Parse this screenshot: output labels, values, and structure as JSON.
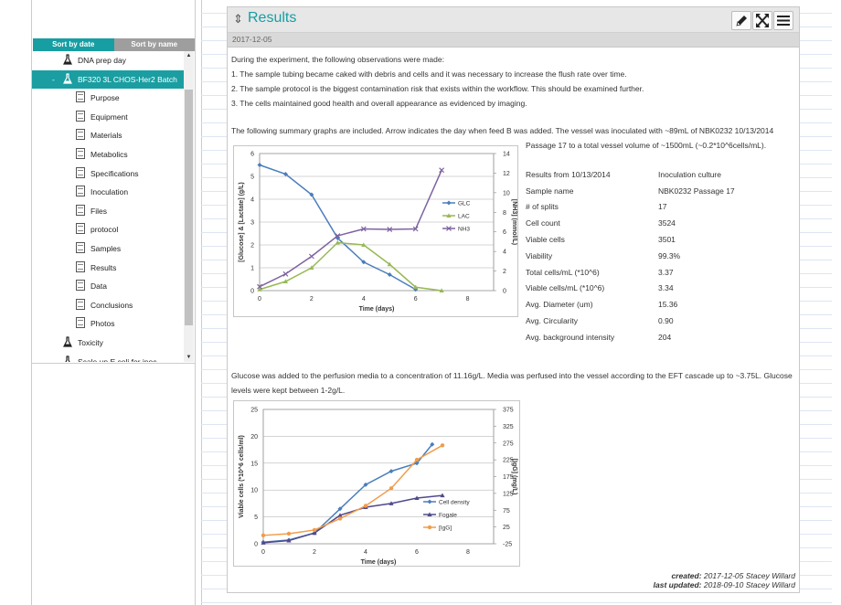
{
  "sidebar": {
    "sort_by_date": "Sort by date",
    "sort_by_name": "Sort by name",
    "items": [
      {
        "label": "DNA prep day",
        "kind": "flask",
        "level": 0
      },
      {
        "label": "BF320 3L CHOS-Her2 Batch",
        "kind": "flask",
        "level": 0,
        "selected": true,
        "prefix": "-"
      },
      {
        "label": "Purpose",
        "kind": "doc",
        "level": 1
      },
      {
        "label": "Equipment",
        "kind": "doc",
        "level": 1
      },
      {
        "label": "Materials",
        "kind": "doc",
        "level": 1
      },
      {
        "label": "Metabolics",
        "kind": "doc",
        "level": 1
      },
      {
        "label": "Specifications",
        "kind": "doc",
        "level": 1
      },
      {
        "label": "Inoculation",
        "kind": "doc",
        "level": 1
      },
      {
        "label": "Files",
        "kind": "doc",
        "level": 1
      },
      {
        "label": "protocol",
        "kind": "doc",
        "level": 1
      },
      {
        "label": "Samples",
        "kind": "doc",
        "level": 1
      },
      {
        "label": "Results",
        "kind": "doc",
        "level": 1
      },
      {
        "label": "Data",
        "kind": "doc",
        "level": 1
      },
      {
        "label": "Conclusions",
        "kind": "doc",
        "level": 1
      },
      {
        "label": "Photos",
        "kind": "doc",
        "level": 1
      },
      {
        "label": "Toxicity",
        "kind": "flask",
        "level": 0
      },
      {
        "label": "Scale up E coli for inoc",
        "kind": "flask",
        "level": 0
      }
    ]
  },
  "panel": {
    "title": "Results",
    "date": "2017-12-05",
    "intro": "During the experiment, the following observations were made:",
    "observations": [
      "1. The sample tubing became caked with debris and cells and it was necessary to increase the flush rate over time.",
      "2. The sample protocol is the biggest contamination risk that exists within the workflow. This should be examined further.",
      "3. The cells maintained good health and overall appearance as evidenced by imaging."
    ],
    "summary_line1": "The following summary graphs are included. Arrow indicates the day when feed B was added.  The vessel was inoculated with ~89mL of NBK0232 10/13/2014",
    "summary_line2": "Passage 17 to a total vessel volume of ~1500mL (~0.2*10^6cells/mL).",
    "table": [
      [
        "Results from 10/13/2014",
        "Inoculation culture"
      ],
      [
        "Sample name",
        "NBK0232 Passage 17"
      ],
      [
        "# of splits",
        "17"
      ],
      [
        "Cell count",
        "3524"
      ],
      [
        "Viable cells",
        "3501"
      ],
      [
        "Viability",
        "99.3%"
      ],
      [
        "Total cells/mL (*10^6)",
        "3.37"
      ],
      [
        "Viable cells/mL (*10^6)",
        "3.34"
      ],
      [
        "Avg. Diameter (um)",
        "15.36"
      ],
      [
        "Avg. Circularity",
        "0.90"
      ],
      [
        "Avg. background intensity",
        "204"
      ]
    ],
    "glucose_line1": "Glucose was added to the perfusion media to a concentration of 11.16g/L. Media was perfused into the vessel according to the EFT cascade up to ~3.75L. Glucose",
    "glucose_line2": "levels were kept between 1-2g/L.",
    "created_label": "created:",
    "created_value": "2017-12-05 Stacey Willard",
    "updated_label": "last updated:",
    "updated_value": "2018-09-10 Stacey Willard"
  },
  "colors": {
    "accent": "#179ea3",
    "blue": "#4a7ebb",
    "green": "#98b954",
    "purple": "#7e62a1",
    "orange": "#f19c4b",
    "navy": "#4f4a8c"
  },
  "chart_data": [
    {
      "type": "line",
      "xlabel": "Time (days)",
      "ylabel": "[Glucose] & [Lactate] (g/L)",
      "y2label": "[NH3] (mmol/L)",
      "xlim": [
        0,
        9
      ],
      "xticks": [
        0,
        2,
        4,
        6,
        8
      ],
      "ylim": [
        0,
        6
      ],
      "yticks": [
        0,
        1,
        2,
        3,
        4,
        5,
        6
      ],
      "y2lim": [
        0,
        14
      ],
      "y2ticks": [
        0,
        2,
        4,
        6,
        8,
        10,
        12,
        14
      ],
      "series": [
        {
          "name": "GLC",
          "axis": "left",
          "color": "#4a7ebb",
          "marker": "diamond",
          "x": [
            0,
            1,
            2,
            3,
            4,
            5,
            6
          ],
          "values": [
            5.5,
            5.1,
            4.2,
            2.3,
            1.25,
            0.7,
            0.05
          ]
        },
        {
          "name": "LAC",
          "axis": "left",
          "color": "#98b954",
          "marker": "triangle",
          "x": [
            0,
            1,
            2,
            3,
            4,
            5,
            6,
            7
          ],
          "values": [
            0.05,
            0.4,
            1.0,
            2.1,
            2.0,
            1.15,
            0.15,
            0.0
          ]
        },
        {
          "name": "NH3",
          "axis": "right",
          "color": "#7e62a1",
          "marker": "x",
          "x": [
            0,
            1,
            2,
            3,
            4,
            5,
            6,
            7
          ],
          "values": [
            0.4,
            1.7,
            3.5,
            5.6,
            6.3,
            6.25,
            6.3,
            12.3
          ]
        }
      ]
    },
    {
      "type": "line",
      "xlabel": "Time (days)",
      "ylabel": "Viable cells (*10^6 cells/ml)",
      "y2label": "[IgG] (mg/L)",
      "xlim": [
        0,
        9
      ],
      "xticks": [
        0,
        2,
        4,
        6,
        8
      ],
      "ylim": [
        0,
        25
      ],
      "yticks": [
        0,
        5,
        10,
        15,
        20,
        25
      ],
      "y2lim": [
        -25,
        375
      ],
      "y2ticks": [
        -25,
        25,
        75,
        125,
        175,
        225,
        275,
        325,
        375
      ],
      "series": [
        {
          "name": "Cell density",
          "axis": "left",
          "color": "#4a7ebb",
          "marker": "diamond",
          "x": [
            0,
            1,
            2,
            3,
            4,
            5,
            6,
            6.6
          ],
          "values": [
            0.3,
            0.7,
            2.0,
            6.5,
            11.0,
            13.5,
            15.0,
            18.5
          ]
        },
        {
          "name": "Fogale",
          "axis": "left",
          "color": "#4f4a8c",
          "marker": "triangle",
          "x": [
            0,
            1,
            2,
            3,
            4,
            5,
            6,
            7
          ],
          "values": [
            0.2,
            0.6,
            2.0,
            5.3,
            6.8,
            7.5,
            8.5,
            9.0
          ]
        },
        {
          "name": "[IgG]",
          "axis": "right",
          "color": "#f19c4b",
          "marker": "circle",
          "x": [
            0,
            1,
            2,
            3,
            4,
            5,
            6,
            7
          ],
          "values": [
            0,
            5,
            16,
            50,
            88,
            140,
            225,
            268
          ]
        }
      ]
    }
  ]
}
